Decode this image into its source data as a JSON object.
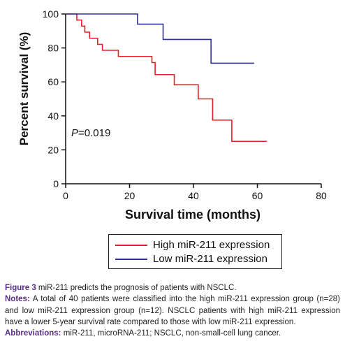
{
  "chart_data": {
    "type": "line",
    "step": true,
    "xlabel": "Survival time (months)",
    "ylabel": "Percent survival (%)",
    "xlim": [
      0,
      80
    ],
    "ylim": [
      0,
      100
    ],
    "xticks": [
      0,
      20,
      40,
      60,
      80
    ],
    "yticks": [
      0,
      20,
      40,
      60,
      80,
      100
    ],
    "grid": false,
    "annotation": {
      "prefix": "P",
      "text": "=0.019"
    },
    "legend": {
      "placement": "bottom"
    },
    "series": [
      {
        "name": "High miR-211 expression",
        "color": "#e0202a",
        "x": [
          0,
          3.5,
          5,
          6,
          7.5,
          10,
          11.5,
          16.5,
          27,
          28,
          34,
          41.5,
          46,
          52,
          63
        ],
        "y": [
          100,
          96.4,
          92.9,
          89.3,
          85.7,
          82.1,
          78.6,
          75.0,
          71.4,
          64.3,
          58.3,
          50.0,
          37.5,
          25.0,
          25.0
        ]
      },
      {
        "name": "Low miR-211 expression",
        "color": "#2e3192",
        "x": [
          0,
          22.5,
          30.5,
          45.5,
          59
        ],
        "y": [
          100,
          94,
          85,
          71,
          71
        ]
      }
    ]
  },
  "caption": {
    "figure_label": "Figure 3",
    "figure_title": " miR-211 predicts the prognosis of patients with NSCLC.",
    "notes_label": "Notes:",
    "notes_text": " A total of 40 patients were classified into the high miR-211 expression group (n=28) and low miR-211 expression group (n=12). NSCLC patients with high miR-211 expression have a lower 5-year survival rate compared to those with low miR-211 expression.",
    "abbrev_label": "Abbreviations:",
    "abbrev_text": " miR-211, microRNA-211; NSCLC, non-small-cell lung cancer."
  }
}
